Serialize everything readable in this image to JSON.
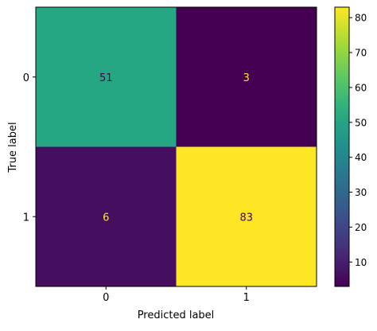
{
  "chart_data": {
    "type": "heatmap",
    "title": "",
    "xlabel": "Predicted label",
    "ylabel": "True label",
    "x_categories": [
      "0",
      "1"
    ],
    "y_categories": [
      "0",
      "1"
    ],
    "matrix": [
      [
        51,
        3
      ],
      [
        6,
        83
      ]
    ],
    "colormap": "viridis",
    "colorbar": {
      "min": 3,
      "max": 83,
      "ticks": [
        10,
        20,
        30,
        40,
        50,
        60,
        70,
        80
      ],
      "placement": "right"
    },
    "text_colors": {
      "on_dark": "#fde725",
      "on_light": "#440154"
    },
    "grid": false,
    "legend": "none"
  }
}
